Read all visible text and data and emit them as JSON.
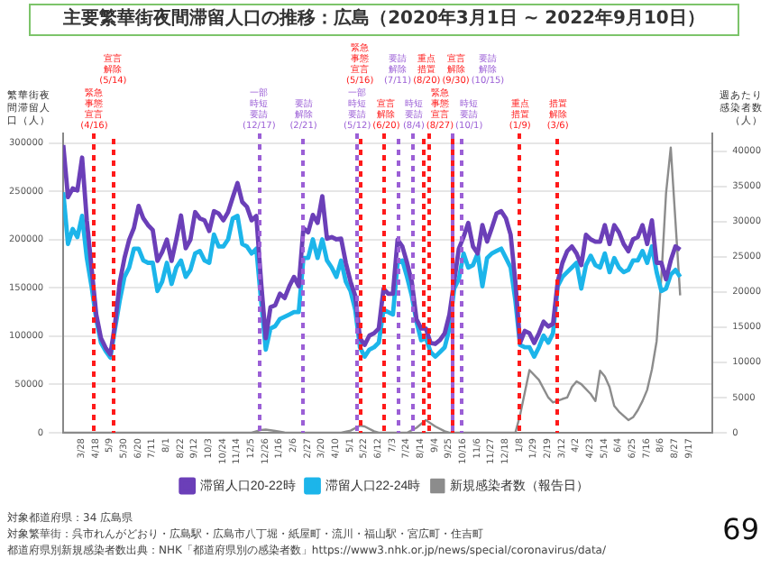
{
  "chart_data": {
    "type": "line",
    "title": "主要繁華街夜間滞留人口の推移：広島（2020年3月1日 ~ 2022年9月10日）",
    "ylabel": "繁華街夜間滞留人口（人）",
    "y2label": "週あたり感染者数（人）",
    "x": [
      "2020-03-01",
      "2020-03-08",
      "2020-03-15",
      "2020-03-22",
      "2020-03-29",
      "2020-04-05",
      "2020-04-12",
      "2020-04-19",
      "2020-04-26",
      "2020-05-03",
      "2020-05-10",
      "2020-05-17",
      "2020-05-24",
      "2020-05-31",
      "2020-06-07",
      "2020-06-14",
      "2020-06-21",
      "2020-06-28",
      "2020-07-05",
      "2020-07-12",
      "2020-07-19",
      "2020-07-26",
      "2020-08-02",
      "2020-08-09",
      "2020-08-16",
      "2020-08-23",
      "2020-08-30",
      "2020-09-06",
      "2020-09-13",
      "2020-09-20",
      "2020-09-27",
      "2020-10-04",
      "2020-10-11",
      "2020-10-18",
      "2020-10-25",
      "2020-11-01",
      "2020-11-08",
      "2020-11-15",
      "2020-11-22",
      "2020-11-29",
      "2020-12-06",
      "2020-12-13",
      "2020-12-20",
      "2020-12-27",
      "2021-01-03",
      "2021-01-10",
      "2021-01-17",
      "2021-01-24",
      "2021-01-31",
      "2021-02-07",
      "2021-02-14",
      "2021-02-21",
      "2021-02-28",
      "2021-03-07",
      "2021-03-14",
      "2021-03-21",
      "2021-03-28",
      "2021-04-04",
      "2021-04-11",
      "2021-04-18",
      "2021-04-25",
      "2021-05-02",
      "2021-05-09",
      "2021-05-16",
      "2021-05-23",
      "2021-05-30",
      "2021-06-06",
      "2021-06-13",
      "2021-06-20",
      "2021-06-27",
      "2021-07-04",
      "2021-07-11",
      "2021-07-18",
      "2021-07-25",
      "2021-08-01",
      "2021-08-08",
      "2021-08-15",
      "2021-08-22",
      "2021-08-29",
      "2021-09-05",
      "2021-09-12",
      "2021-09-19",
      "2021-09-26",
      "2021-10-03",
      "2021-10-10",
      "2021-10-17",
      "2021-10-24",
      "2021-10-31",
      "2021-11-07",
      "2021-11-14",
      "2021-11-21",
      "2021-11-28",
      "2021-12-05",
      "2021-12-12",
      "2021-12-19",
      "2021-12-26",
      "2022-01-02",
      "2022-01-09",
      "2022-01-16",
      "2022-01-23",
      "2022-01-30",
      "2022-02-06",
      "2022-02-13",
      "2022-02-20",
      "2022-02-27",
      "2022-03-06",
      "2022-03-13",
      "2022-03-20",
      "2022-03-27",
      "2022-04-03",
      "2022-04-10",
      "2022-04-17",
      "2022-04-24",
      "2022-05-01",
      "2022-05-08",
      "2022-05-15",
      "2022-05-22",
      "2022-05-29",
      "2022-06-05",
      "2022-06-12",
      "2022-06-19",
      "2022-06-26",
      "2022-07-03",
      "2022-07-10",
      "2022-07-17",
      "2022-07-24",
      "2022-07-31",
      "2022-08-07",
      "2022-08-14",
      "2022-08-21",
      "2022-08-28",
      "2022-09-04"
    ],
    "series": [
      {
        "name": "滞留人口20-22時",
        "color": "#6b3fb8",
        "values": [
          298000,
          244000,
          253000,
          251000,
          285000,
          220000,
          171000,
          122500,
          98000,
          88000,
          81000,
          113000,
          156000,
          181000,
          200000,
          212000,
          235000,
          222000,
          215000,
          210000,
          178000,
          187000,
          200000,
          178000,
          200000,
          225000,
          191000,
          200000,
          228500,
          222000,
          220000,
          209000,
          229500,
          227000,
          220000,
          228500,
          244000,
          258600,
          239000,
          234000,
          220000,
          224500,
          156500,
          98000,
          130000,
          132000,
          144000,
          139500,
          151700,
          161400,
          151700,
          212000,
          207600,
          225600,
          217300,
          245000,
          201000,
          202700,
          200300,
          201000,
          176000,
          156500,
          142000,
          98000,
          91000,
          100600,
          103000,
          108000,
          149000,
          144000,
          144000,
          200000,
          193000,
          176000,
          156500,
          117600,
          108000,
          108000,
          93000,
          92000,
          96000,
          103000,
          122500,
          156500,
          190600,
          202700,
          217300,
          193000,
          185700,
          215000,
          198000,
          212000,
          227000,
          229500,
          222000,
          205000,
          156500,
          93000,
          105500,
          103000,
          93000,
          103000,
          115000,
          110000,
          112800,
          156500,
          176000,
          188000,
          193000,
          185700,
          173600,
          205000,
          200300,
          197900,
          197900,
          215000,
          195500,
          215000,
          207600,
          195500,
          188000,
          200300,
          202700,
          215000,
          195500,
          220000,
          176000,
          176000,
          159000,
          178500,
          193000,
          189600
        ]
      },
      {
        "name": "滞留人口22-24時",
        "color": "#1cb5ea",
        "values": [
          249000,
          195500,
          211000,
          202700,
          224600,
          181000,
          151700,
          117700,
          93300,
          84600,
          77800,
          108000,
          137100,
          161400,
          171100,
          190600,
          190600,
          178400,
          176000,
          176000,
          146800,
          156500,
          176000,
          154100,
          171100,
          178400,
          161400,
          168700,
          185700,
          188200,
          178400,
          176000,
          205200,
          193000,
          193000,
          200300,
          222200,
          224600,
          195500,
          193000,
          185700,
          190600,
          137100,
          86100,
          108000,
          110400,
          117700,
          120100,
          122500,
          125000,
          125000,
          181000,
          181000,
          200300,
          181000,
          200300,
          178400,
          171100,
          161400,
          178400,
          156500,
          146800,
          127400,
          88500,
          78800,
          86100,
          88500,
          93300,
          127400,
          125000,
          122500,
          176000,
          178400,
          161400,
          142000,
          115200,
          95800,
          98200,
          83600,
          78800,
          83600,
          88500,
          108000,
          149300,
          159000,
          185700,
          171100,
          173600,
          185700,
          151700,
          181000,
          185700,
          188200,
          190600,
          181000,
          171100,
          137100,
          90900,
          88500,
          88500,
          78800,
          88500,
          100600,
          93300,
          103100,
          151700,
          161400,
          166300,
          171100,
          176000,
          149300,
          173600,
          183300,
          173600,
          171100,
          185700,
          166300,
          181000,
          171100,
          166300,
          168700,
          178400,
          178400,
          188200,
          176000,
          193000,
          166300,
          146800,
          149300,
          163800,
          168700,
          161400
        ]
      },
      {
        "name": "新規感染者数（報告日）",
        "color": "#8c8c8c",
        "axis": "y2",
        "x": [
          "2020-03-01",
          "2020-12-06",
          "2020-12-20",
          "2020-12-27",
          "2021-01-10",
          "2021-01-24",
          "2021-01-31",
          "2021-04-18",
          "2021-05-02",
          "2021-05-16",
          "2021-05-23",
          "2021-06-06",
          "2021-06-13",
          "2021-07-25",
          "2021-08-08",
          "2021-08-22",
          "2021-09-05",
          "2021-09-19",
          "2021-09-26",
          "2022-01-02",
          "2022-01-09",
          "2022-01-23",
          "2022-02-06",
          "2022-02-20",
          "2022-02-27",
          "2022-03-13",
          "2022-03-20",
          "2022-03-27",
          "2022-04-03",
          "2022-04-10",
          "2022-04-24",
          "2022-05-01",
          "2022-05-08",
          "2022-05-15",
          "2022-05-22",
          "2022-05-29",
          "2022-06-05",
          "2022-06-19",
          "2022-06-26",
          "2022-07-03",
          "2022-07-10",
          "2022-07-17",
          "2022-07-24",
          "2022-07-31",
          "2022-08-07",
          "2022-08-14",
          "2022-08-21",
          "2022-08-28",
          "2022-09-04"
        ],
        "values": [
          0,
          0,
          400,
          450,
          250,
          50,
          0,
          0,
          300,
          1000,
          900,
          200,
          0,
          0,
          700,
          1800,
          900,
          200,
          0,
          0,
          2500,
          8900,
          7500,
          5000,
          4300,
          4800,
          5000,
          6500,
          7300,
          6900,
          5500,
          4500,
          8800,
          8000,
          6500,
          3800,
          3000,
          1800,
          2200,
          3200,
          4500,
          6100,
          9000,
          13000,
          22000,
          34000,
          40500,
          30000,
          19500
        ]
      }
    ],
    "xlim": [
      "2020-03-01",
      "2022-10-22"
    ],
    "xticks": [
      {
        "value": "2020-03-28",
        "label": "3/28"
      },
      {
        "value": "2020-04-18",
        "label": "4/18"
      },
      {
        "value": "2020-05-09",
        "label": "5/9"
      },
      {
        "value": "2020-05-30",
        "label": "5/30"
      },
      {
        "value": "2020-06-20",
        "label": "6/20"
      },
      {
        "value": "2020-07-11",
        "label": "7/11"
      },
      {
        "value": "2020-08-01",
        "label": "8/1"
      },
      {
        "value": "2020-08-22",
        "label": "8/22"
      },
      {
        "value": "2020-09-12",
        "label": "9/12"
      },
      {
        "value": "2020-10-03",
        "label": "10/3"
      },
      {
        "value": "2020-10-24",
        "label": "10/24"
      },
      {
        "value": "2020-11-14",
        "label": "11/14"
      },
      {
        "value": "2020-12-05",
        "label": "12/5"
      },
      {
        "value": "2020-12-26",
        "label": "12/26"
      },
      {
        "value": "2021-01-16",
        "label": "1/16"
      },
      {
        "value": "2021-02-06",
        "label": "2/6"
      },
      {
        "value": "2021-02-27",
        "label": "2/27"
      },
      {
        "value": "2021-03-20",
        "label": "3/20"
      },
      {
        "value": "2021-04-10",
        "label": "4/10"
      },
      {
        "value": "2021-05-01",
        "label": "5/1"
      },
      {
        "value": "2021-05-22",
        "label": "5/22"
      },
      {
        "value": "2021-06-12",
        "label": "6/12"
      },
      {
        "value": "2021-07-03",
        "label": "7/3"
      },
      {
        "value": "2021-07-24",
        "label": "7/24"
      },
      {
        "value": "2021-08-14",
        "label": "8/14"
      },
      {
        "value": "2021-09-04",
        "label": "9/4"
      },
      {
        "value": "2021-09-25",
        "label": "9/25"
      },
      {
        "value": "2021-10-16",
        "label": "10/16"
      },
      {
        "value": "2021-11-06",
        "label": "11/6"
      },
      {
        "value": "2021-11-27",
        "label": "11/27"
      },
      {
        "value": "2021-12-18",
        "label": "12/18"
      },
      {
        "value": "2022-01-08",
        "label": "1/8"
      },
      {
        "value": "2022-01-29",
        "label": "1/29"
      },
      {
        "value": "2022-02-19",
        "label": "2/19"
      },
      {
        "value": "2022-03-12",
        "label": "3/12"
      },
      {
        "value": "2022-04-02",
        "label": "4/2"
      },
      {
        "value": "2022-04-23",
        "label": "4/23"
      },
      {
        "value": "2022-05-14",
        "label": "5/14"
      },
      {
        "value": "2022-06-04",
        "label": "6/4"
      },
      {
        "value": "2022-06-25",
        "label": "6/25"
      },
      {
        "value": "2022-07-16",
        "label": "7/16"
      },
      {
        "value": "2022-08-06",
        "label": "8/6"
      },
      {
        "value": "2022-08-27",
        "label": "8/27"
      },
      {
        "value": "2022-09-17",
        "label": "9/17"
      }
    ],
    "ylim": [
      0,
      310000
    ],
    "yticks": [
      0,
      50000,
      100000,
      150000,
      200000,
      250000,
      300000
    ],
    "y2lim": [
      0,
      42500
    ],
    "y2ticks": [
      0,
      5000,
      10000,
      15000,
      20000,
      25000,
      30000,
      35000,
      40000
    ],
    "ref_lines": [
      {
        "axis": "x",
        "value": "2020-04-16",
        "label": "緊急事態宣言(4/16)",
        "color": "#ff1a1a",
        "line_style": "dashed"
      },
      {
        "axis": "x",
        "value": "2020-05-14",
        "label": "宣言解除(5/14)",
        "color": "#ff1a1a",
        "line_style": "dashed"
      },
      {
        "axis": "x",
        "value": "2020-12-17",
        "label": "一部時短要請(12/17)",
        "color": "#9b5fd6",
        "line_style": "dashed"
      },
      {
        "axis": "x",
        "value": "2021-02-21",
        "label": "要請解除(2/21)",
        "color": "#9b5fd6",
        "line_style": "dashed"
      },
      {
        "axis": "x",
        "value": "2021-05-12",
        "label": "一部時短要請(5/12)",
        "color": "#9b5fd6",
        "line_style": "dashed"
      },
      {
        "axis": "x",
        "value": "2021-05-16",
        "label": "緊急事態宣言(5/16)",
        "color": "#ff1a1a",
        "line_style": "dashed"
      },
      {
        "axis": "x",
        "value": "2021-06-20",
        "label": "宣言解除(6/20)",
        "color": "#ff1a1a",
        "line_style": "dashed"
      },
      {
        "axis": "x",
        "value": "2021-07-11",
        "label": "要請解除(7/11)",
        "color": "#9b5fd6",
        "line_style": "dashed"
      },
      {
        "axis": "x",
        "value": "2021-08-04",
        "label": "時短要請(8/4)",
        "color": "#9b5fd6",
        "line_style": "dashed"
      },
      {
        "axis": "x",
        "value": "2021-08-20",
        "label": "重点措置(8/20)",
        "color": "#ff1a1a",
        "line_style": "dashed"
      },
      {
        "axis": "x",
        "value": "2021-08-27",
        "label": "緊急事態宣言(8/27)",
        "color": "#ff1a1a",
        "line_style": "dashed"
      },
      {
        "axis": "x",
        "value": "2021-09-30",
        "label": "宣言解除(9/30)",
        "color": "#ff1a1a",
        "line_style": "dashed"
      },
      {
        "axis": "x",
        "value": "2021-10-01",
        "label": "時短要請(10/1)",
        "color": "#9b5fd6",
        "line_style": "dashed"
      },
      {
        "axis": "x",
        "value": "2021-10-15",
        "label": "要請解除(10/15)",
        "color": "#9b5fd6",
        "line_style": "dashed"
      },
      {
        "axis": "x",
        "value": "2022-01-09",
        "label": "重点措置(1/9)",
        "color": "#ff1a1a",
        "line_style": "dashed"
      },
      {
        "axis": "x",
        "value": "2022-03-06",
        "label": "措置解除(3/6)",
        "color": "#ff1a1a",
        "line_style": "dashed"
      }
    ],
    "grid": "y",
    "legend": "bottom",
    "line_style": "solid",
    "annotations": [
      "対象都道府県：34 広島県",
      "対象繁華街：呉市れんがどおり・広島駅・広島市八丁堀・紙屋町・流川・福山駅・宮広町・住吉町",
      "都道府県別新規感染者数出典：NHK「都道府県別の感染者数」https://www3.nhk.or.jp/news/special/coronavirus/data/",
      "69"
    ]
  }
}
